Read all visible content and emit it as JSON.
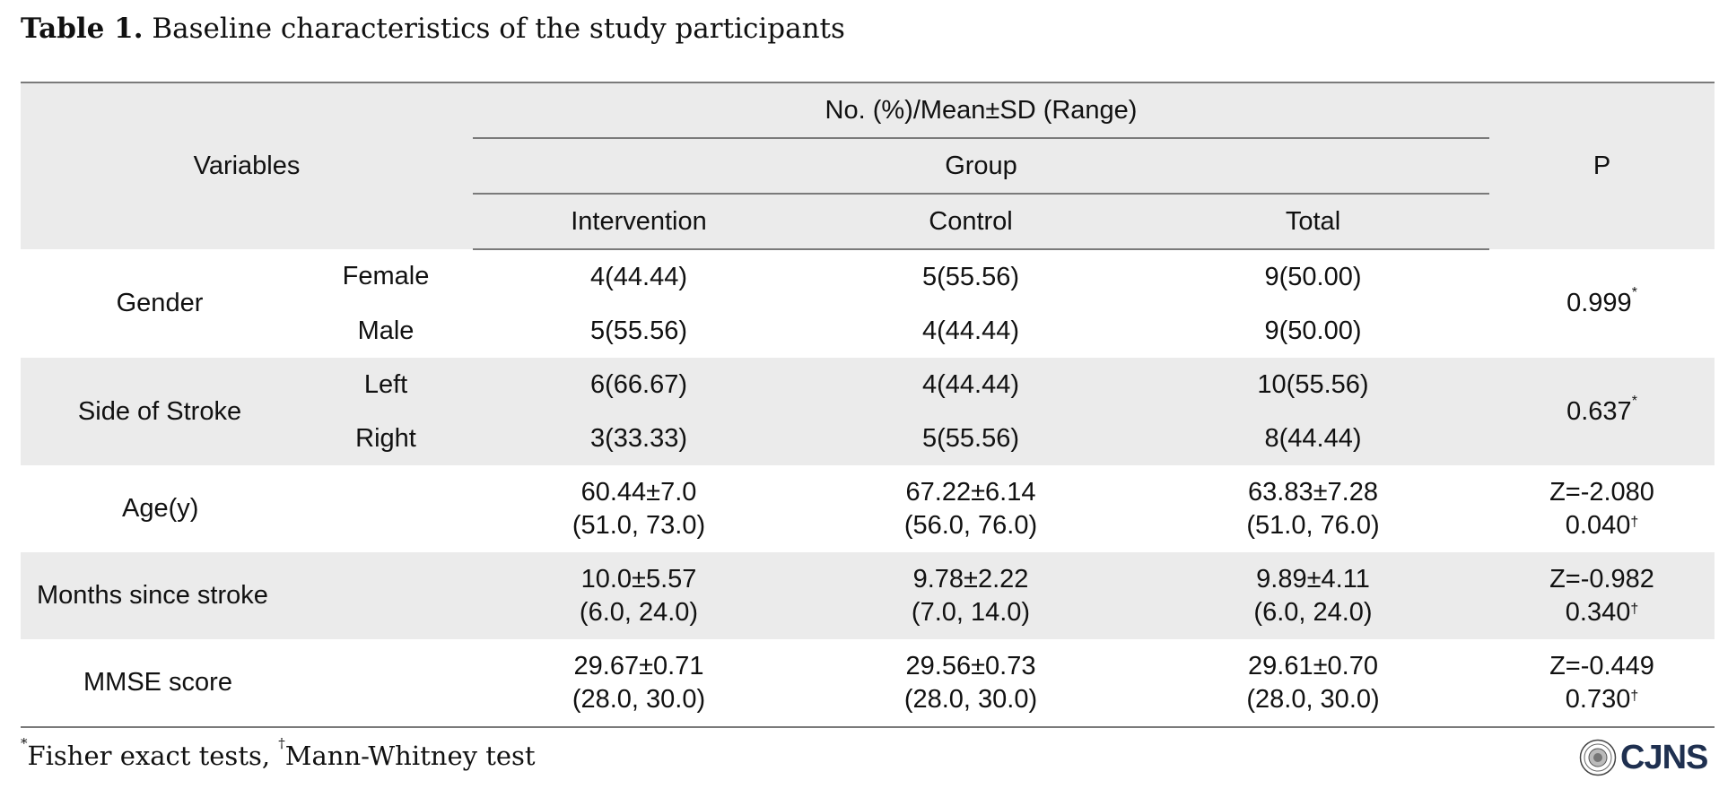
{
  "caption": {
    "label": "Table 1.",
    "text": " Baseline characteristics of the study participants"
  },
  "header": {
    "variables": "Variables",
    "stat": "No. (%)/Mean±SD (Range)",
    "group": "Group",
    "intervention": "Intervention",
    "control": "Control",
    "total": "Total",
    "p": "P"
  },
  "rows": {
    "gender": {
      "label": "Gender",
      "p": "0.999",
      "p_mark": "*",
      "female": {
        "label": "Female",
        "intervention": "4(44.44)",
        "control": "5(55.56)",
        "total": "9(50.00)"
      },
      "male": {
        "label": "Male",
        "intervention": "5(55.56)",
        "control": "4(44.44)",
        "total": "9(50.00)"
      }
    },
    "side": {
      "label": "Side of Stroke",
      "p": "0.637",
      "p_mark": "*",
      "left": {
        "label": "Left",
        "intervention": "6(66.67)",
        "control": "4(44.44)",
        "total": "10(55.56)"
      },
      "right": {
        "label": "Right",
        "intervention": "3(33.33)",
        "control": "5(55.56)",
        "total": "8(44.44)"
      }
    },
    "age": {
      "label": "Age(y)",
      "intervention": [
        "60.44±7.0",
        "(51.0, 73.0)"
      ],
      "control": [
        "67.22±6.14",
        "(56.0, 76.0)"
      ],
      "total": [
        "63.83±7.28",
        "(51.0, 76.0)"
      ],
      "z": "Z=-2.080",
      "p": "0.040",
      "p_mark": "†"
    },
    "months": {
      "label": "Months since stroke",
      "intervention": [
        "10.0±5.57",
        "(6.0, 24.0)"
      ],
      "control": [
        "9.78±2.22",
        "(7.0, 14.0)"
      ],
      "total": [
        "9.89±4.11",
        "(6.0, 24.0)"
      ],
      "z": "Z=-0.982",
      "p": "0.340",
      "p_mark": "†"
    },
    "mmse": {
      "label": "MMSE score",
      "intervention": [
        "29.67±0.71",
        "(28.0, 30.0)"
      ],
      "control": [
        "29.56±0.73",
        "(28.0, 30.0)"
      ],
      "total": [
        "29.61±0.70",
        "(28.0, 30.0)"
      ],
      "z": "Z=-0.449",
      "p": "0.730",
      "p_mark": "†"
    }
  },
  "footnote": {
    "mark1": "*",
    "text1": "Fisher exact tests, ",
    "mark2": "†",
    "text2": "Mann-Whitney test"
  },
  "logo": {
    "text": "CJNS",
    "seal_icon": "journal-seal-icon",
    "color": "#1f3050"
  },
  "colors": {
    "header_bg": "#ebebeb",
    "shade_bg": "#ebebeb",
    "rule": "#7a7a7a"
  }
}
